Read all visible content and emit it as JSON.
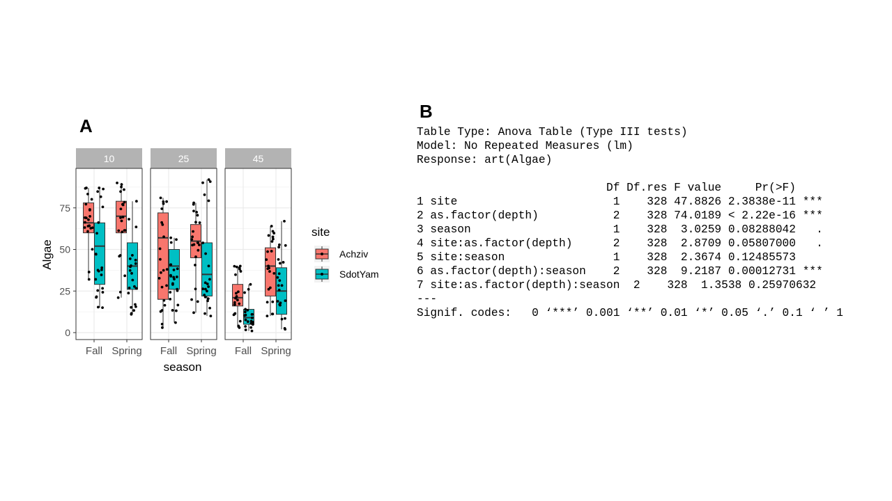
{
  "panel_a_label": "A",
  "panel_b_label": "B",
  "chart_data": {
    "type": "boxplot",
    "xlabel": "season",
    "ylabel": "Algae",
    "ylim": [
      0,
      90
    ],
    "yticks": [
      0,
      25,
      50,
      75
    ],
    "grid": true,
    "legend": {
      "title": "site",
      "position": "right",
      "entries": [
        "Achziv",
        "SdotYam"
      ]
    },
    "colors": {
      "Achziv": "#F8766D",
      "SdotYam": "#00BFC4",
      "strip": "#B3B3B3",
      "grid": "#EBEBEB"
    },
    "facet_var": "depth",
    "categories": [
      "Fall",
      "Spring"
    ],
    "facets": [
      {
        "label": "10",
        "boxes": [
          {
            "season": "Fall",
            "site": "Achziv",
            "min": 32,
            "q1": 60,
            "median": 66,
            "q3": 78,
            "max": 87
          },
          {
            "season": "Fall",
            "site": "SdotYam",
            "min": 15,
            "q1": 29,
            "median": 52,
            "q3": 66,
            "max": 87
          },
          {
            "season": "Spring",
            "site": "Achziv",
            "min": 21,
            "q1": 60,
            "median": 70,
            "q3": 79,
            "max": 90
          },
          {
            "season": "Spring",
            "site": "SdotYam",
            "min": 11,
            "q1": 26,
            "median": 40,
            "q3": 54,
            "max": 79
          }
        ]
      },
      {
        "label": "25",
        "boxes": [
          {
            "season": "Fall",
            "site": "Achziv",
            "min": 3,
            "q1": 20,
            "median": 57,
            "q3": 72,
            "max": 81
          },
          {
            "season": "Fall",
            "site": "SdotYam",
            "min": 6,
            "q1": 26,
            "median": 40,
            "q3": 50,
            "max": 57
          },
          {
            "season": "Spring",
            "site": "Achziv",
            "min": 12,
            "q1": 45,
            "median": 55,
            "q3": 65,
            "max": 78
          },
          {
            "season": "Spring",
            "site": "SdotYam",
            "min": 10,
            "q1": 22,
            "median": 35,
            "q3": 54,
            "max": 92
          }
        ]
      },
      {
        "label": "45",
        "boxes": [
          {
            "season": "Fall",
            "site": "Achziv",
            "min": 3,
            "q1": 16,
            "median": 21,
            "q3": 29,
            "max": 40
          },
          {
            "season": "Fall",
            "site": "SdotYam",
            "min": 1,
            "q1": 5,
            "median": 9,
            "q3": 14,
            "max": 29
          },
          {
            "season": "Spring",
            "site": "Achziv",
            "min": 10,
            "q1": 22,
            "median": 40,
            "q3": 51,
            "max": 64
          },
          {
            "season": "Spring",
            "site": "SdotYam",
            "min": 2,
            "q1": 11,
            "median": 25,
            "q3": 39,
            "max": 67
          }
        ]
      }
    ]
  },
  "anova_table": {
    "lines": [
      "Table Type: Anova Table (Type III tests)",
      "Model: No Repeated Measures (lm)",
      "Response: art(Algae)",
      "",
      "                            Df Df.res F value     Pr(>F)    ",
      "1 site                       1    328 47.8826 2.3838e-11 ***",
      "2 as.factor(depth)           2    328 74.0189 < 2.22e-16 ***",
      "3 season                     1    328  3.0259 0.08288042   .",
      "4 site:as.factor(depth)      2    328  2.8709 0.05807000   .",
      "5 site:season                1    328  2.3674 0.12485573    ",
      "6 as.factor(depth):season    2    328  9.2187 0.00012731 ***",
      "7 site:as.factor(depth):season  2    328  1.3538 0.25970632    ",
      "---",
      "Signif. codes:   0 ‘***’ 0.001 ‘**’ 0.01 ‘*’ 0.05 ‘.’ 0.1 ‘ ’ 1"
    ]
  }
}
